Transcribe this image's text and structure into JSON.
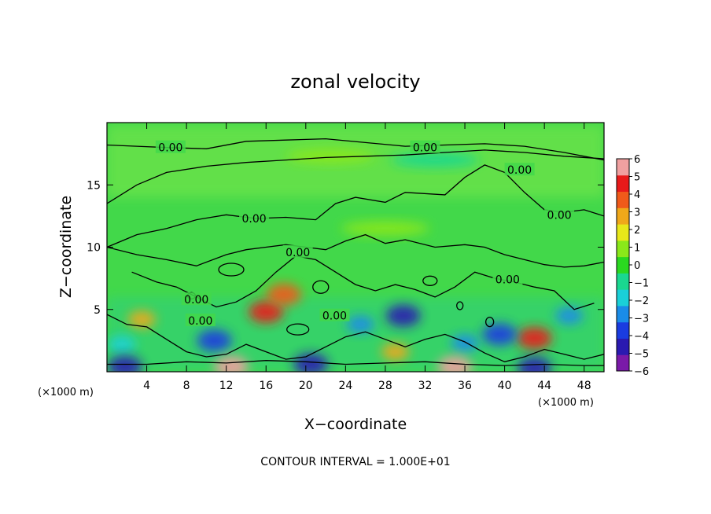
{
  "chart_data": {
    "type": "heatmap",
    "title": "zonal velocity",
    "xlabel": "X−coordinate",
    "ylabel": "Z−coordinate",
    "x_unit_left": "(×1000 m)",
    "x_unit_right": "(×1000 m)",
    "footnote": "CONTOUR INTERVAL = 1.000E+01",
    "xlim": [
      0,
      50
    ],
    "ylim": [
      0,
      20
    ],
    "x_ticks": [
      4,
      8,
      12,
      16,
      20,
      24,
      28,
      32,
      36,
      40,
      44,
      48
    ],
    "y_ticks": [
      5,
      10,
      15
    ],
    "colorbar": {
      "min": -6,
      "max": 6,
      "ticks": [
        6,
        5,
        4,
        3,
        2,
        1,
        0,
        -1,
        -2,
        -3,
        -4,
        -5,
        -6
      ],
      "tick_labels": [
        "6",
        "5",
        "4",
        "3",
        "2",
        "1",
        "0",
        "−1",
        "−2",
        "−3",
        "−4",
        "−5",
        "−6"
      ],
      "colors": [
        "#7a1aa8",
        "#2a1ab0",
        "#1a3ce0",
        "#1a8ce8",
        "#1ad0d8",
        "#1ad890",
        "#2ad820",
        "#8ae81a",
        "#e8e81a",
        "#f0a81a",
        "#f05a1a",
        "#e81a1a",
        "#f0a0a0"
      ]
    },
    "contour_labels": [
      {
        "text": "0.00",
        "x": 6.4,
        "y": 18.0
      },
      {
        "text": "0.00",
        "x": 32.0,
        "y": 18.0
      },
      {
        "text": "0.00",
        "x": 41.5,
        "y": 16.2
      },
      {
        "text": "0.00",
        "x": 45.5,
        "y": 12.6
      },
      {
        "text": "0.00",
        "x": 14.8,
        "y": 12.3
      },
      {
        "text": "0.00",
        "x": 19.2,
        "y": 9.6
      },
      {
        "text": "0.00",
        "x": 40.3,
        "y": 7.4
      },
      {
        "text": "0.00",
        "x": 9.0,
        "y": 5.8
      },
      {
        "text": "0.00",
        "x": 9.4,
        "y": 4.1
      },
      {
        "text": "0.00",
        "x": 22.9,
        "y": 4.5
      }
    ],
    "features": [
      {
        "x": 16.0,
        "z": 4.8,
        "value": 5
      },
      {
        "x": 17.8,
        "z": 6.2,
        "value": 4
      },
      {
        "x": 10.8,
        "z": 2.5,
        "value": -4
      },
      {
        "x": 29.8,
        "z": 4.5,
        "value": -5
      },
      {
        "x": 25.5,
        "z": 3.8,
        "value": -3
      },
      {
        "x": 43.0,
        "z": 2.7,
        "value": 5
      },
      {
        "x": 39.5,
        "z": 3.0,
        "value": -4
      },
      {
        "x": 46.5,
        "z": 4.5,
        "value": -3
      },
      {
        "x": 3.5,
        "z": 4.2,
        "value": 3
      },
      {
        "x": 1.5,
        "z": 2.2,
        "value": -2
      },
      {
        "x": 36.0,
        "z": 2.3,
        "value": -3
      },
      {
        "x": 29.0,
        "z": 1.6,
        "value": 3
      },
      {
        "x": 20.5,
        "z": 0.6,
        "value": -5
      },
      {
        "x": 12.5,
        "z": 0.4,
        "value": 6
      },
      {
        "x": 35.0,
        "z": 0.4,
        "value": 6
      },
      {
        "x": 1.8,
        "z": 0.4,
        "value": -5
      },
      {
        "x": 43.0,
        "z": 0.3,
        "value": -5
      },
      {
        "x": 22.5,
        "z": 17.3,
        "value": 1
      },
      {
        "x": 33.0,
        "z": 17.0,
        "value": -1
      },
      {
        "x": 28.0,
        "z": 11.5,
        "value": 1
      }
    ]
  }
}
